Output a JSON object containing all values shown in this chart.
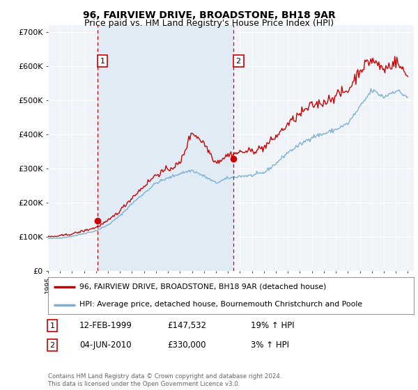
{
  "title": "96, FAIRVIEW DRIVE, BROADSTONE, BH18 9AR",
  "subtitle": "Price paid vs. HM Land Registry's House Price Index (HPI)",
  "ylabel_ticks": [
    "£0",
    "£100K",
    "£200K",
    "£300K",
    "£400K",
    "£500K",
    "£600K",
    "£700K"
  ],
  "ytick_values": [
    0,
    100000,
    200000,
    300000,
    400000,
    500000,
    600000,
    700000
  ],
  "ylim": [
    0,
    720000
  ],
  "xlim_start": 1995.0,
  "xlim_end": 2025.5,
  "sale1_year": 1999,
  "sale1_month": 2,
  "sale1_price": 147532,
  "sale1_label": "1",
  "sale2_year": 2010,
  "sale2_month": 6,
  "sale2_price": 330000,
  "sale2_label": "2",
  "legend_line1": "96, FAIRVIEW DRIVE, BROADSTONE, BH18 9AR (detached house)",
  "legend_line2": "HPI: Average price, detached house, Bournemouth Christchurch and Poole",
  "table_row1": [
    "1",
    "12-FEB-1999",
    "£147,532",
    "19% ↑ HPI"
  ],
  "table_row2": [
    "2",
    "04-JUN-2010",
    "£330,000",
    "3% ↑ HPI"
  ],
  "footer": "Contains HM Land Registry data © Crown copyright and database right 2024.\nThis data is licensed under the Open Government Licence v3.0.",
  "line_color_red": "#cc0000",
  "line_color_blue": "#7ab0d4",
  "shade_color": "#dce8f5",
  "background_color": "#f0f4f8",
  "grid_color": "#ffffff",
  "sale_vline_color": "#cc0000",
  "title_fontsize": 10,
  "subtitle_fontsize": 9
}
